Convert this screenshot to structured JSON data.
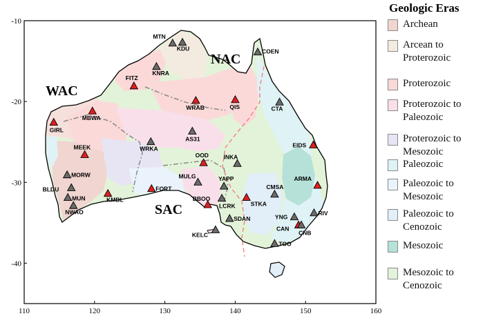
{
  "map": {
    "x_ticks": [
      "110",
      "120",
      "130",
      "140",
      "150",
      "160"
    ],
    "y_ticks": [
      "-10",
      "-20",
      "-30",
      "-40"
    ],
    "region_labels": {
      "wac": "WAC",
      "nac": "NAC",
      "sac": "SAC"
    }
  },
  "legend": {
    "title": "Geologic Eras",
    "items": [
      {
        "lines": [
          "Archean"
        ],
        "color": "#f0d5d0"
      },
      {
        "lines": [
          "Arcean to",
          "Proterozoic"
        ],
        "color": "#f3ebe0"
      },
      {
        "lines": [
          "Proterozoic"
        ],
        "color": "#fbd9d9"
      },
      {
        "lines": [
          "Proterozoic to",
          "Paleozoic"
        ],
        "color": "#f9dfea"
      },
      {
        "lines": [
          "Proterozoic to",
          "Mesozoic"
        ],
        "color": "#e7e4f4"
      },
      {
        "lines": [
          "Paleozoic"
        ],
        "color": "#dff2f6"
      },
      {
        "lines": [
          "Paleozoic to",
          "Mesozoic"
        ],
        "color": "#eaf3fb"
      },
      {
        "lines": [
          "Paleozoic to",
          "Cenozoic"
        ],
        "color": "#e2eef8"
      },
      {
        "lines": [
          "Mesozoic"
        ],
        "color": "#b6e1d8"
      },
      {
        "lines": [
          "Mesozoic to",
          "Cenozoic"
        ],
        "color": "#e3f3d9"
      }
    ]
  },
  "stations": [
    {
      "code": "MTN",
      "lon": 131.1,
      "lat": -12.8,
      "marker": "gray"
    },
    {
      "code": "KDU",
      "lon": 132.5,
      "lat": -12.7,
      "marker": "gray"
    },
    {
      "code": "COEN",
      "lon": 143.2,
      "lat": -13.9,
      "marker": "gray"
    },
    {
      "code": "KNRA",
      "lon": 128.8,
      "lat": -15.7,
      "marker": "gray"
    },
    {
      "code": "FITZ",
      "lon": 125.6,
      "lat": -18.1,
      "marker": "red"
    },
    {
      "code": "WRAB",
      "lon": 134.4,
      "lat": -19.9,
      "marker": "red"
    },
    {
      "code": "QIS",
      "lon": 140.0,
      "lat": -19.8,
      "marker": "red"
    },
    {
      "code": "CTA",
      "lon": 146.3,
      "lat": -20.1,
      "marker": "gray"
    },
    {
      "code": "MBWA",
      "lon": 119.7,
      "lat": -21.2,
      "marker": "red"
    },
    {
      "code": "GIRL",
      "lon": 114.2,
      "lat": -22.6,
      "marker": "red"
    },
    {
      "code": "AS31",
      "lon": 133.9,
      "lat": -23.7,
      "marker": "gray"
    },
    {
      "code": "WRKA",
      "lon": 128.0,
      "lat": -25.0,
      "marker": "gray"
    },
    {
      "code": "EIDS",
      "lon": 151.1,
      "lat": -25.4,
      "marker": "red"
    },
    {
      "code": "MEEK",
      "lon": 118.6,
      "lat": -26.6,
      "marker": "red"
    },
    {
      "code": "OOD",
      "lon": 135.5,
      "lat": -27.6,
      "marker": "red"
    },
    {
      "code": "INKA",
      "lon": 140.3,
      "lat": -27.7,
      "marker": "gray"
    },
    {
      "code": "MORW",
      "lon": 116.1,
      "lat": -29.1,
      "marker": "gray"
    },
    {
      "code": "MULG",
      "lon": 134.7,
      "lat": -30.0,
      "marker": "gray"
    },
    {
      "code": "YAPP",
      "lon": 138.4,
      "lat": -30.5,
      "marker": "gray"
    },
    {
      "code": "ARMA",
      "lon": 151.7,
      "lat": -30.4,
      "marker": "red"
    },
    {
      "code": "FORT",
      "lon": 128.1,
      "lat": -30.8,
      "marker": "red"
    },
    {
      "code": "BLDU",
      "lon": 116.7,
      "lat": -30.7,
      "marker": "gray"
    },
    {
      "code": "CMSA",
      "lon": 145.6,
      "lat": -31.5,
      "marker": "gray"
    },
    {
      "code": "KMBL",
      "lon": 121.9,
      "lat": -31.4,
      "marker": "red"
    },
    {
      "code": "MUN",
      "lon": 116.2,
      "lat": -31.9,
      "marker": "gray"
    },
    {
      "code": "BBOO",
      "lon": 136.1,
      "lat": -32.8,
      "marker": "red"
    },
    {
      "code": "LCRK",
      "lon": 138.1,
      "lat": -32.0,
      "marker": "gray"
    },
    {
      "code": "STKA",
      "lon": 141.6,
      "lat": -31.9,
      "marker": "red"
    },
    {
      "code": "NWAO",
      "lon": 117.0,
      "lat": -32.9,
      "marker": "gray"
    },
    {
      "code": "RIV",
      "lon": 151.2,
      "lat": -33.8,
      "marker": "gray"
    },
    {
      "code": "YNG",
      "lon": 148.4,
      "lat": -34.3,
      "marker": "gray"
    },
    {
      "code": "SDAN",
      "lon": 139.2,
      "lat": -34.5,
      "marker": "gray"
    },
    {
      "code": "CAN",
      "lon": 149.0,
      "lat": -35.3,
      "marker": "red"
    },
    {
      "code": "CNB",
      "lon": 149.4,
      "lat": -35.3,
      "marker": "gray"
    },
    {
      "code": "KELC",
      "lon": 137.2,
      "lat": -35.9,
      "marker": "gray"
    },
    {
      "code": "TOO",
      "lon": 145.6,
      "lat": -37.6,
      "marker": "gray"
    }
  ]
}
